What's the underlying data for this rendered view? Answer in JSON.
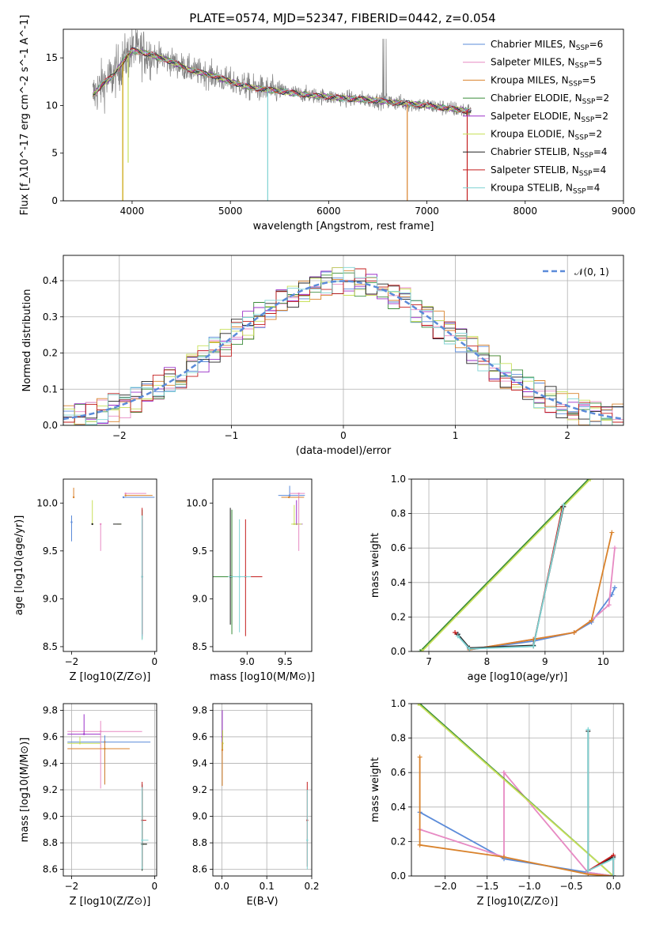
{
  "figure": {
    "title": "PLATE=0574, MJD=52347, FIBERID=0442, z=0.054"
  },
  "colors": {
    "Chabrier MILES": "#5b8bd9",
    "Salpeter MILES": "#e78ac3",
    "Kroupa MILES": "#d9822b",
    "Chabrier ELODIE": "#3a8c3a",
    "Salpeter ELODIE": "#9b30c8",
    "Kroupa ELODIE": "#c8e05a",
    "Chabrier STELIB": "#222222",
    "Salpeter STELIB": "#c41e1e",
    "Kroupa STELIB": "#7fd3d3",
    "data": "#808080",
    "normal": "#5b8bd9"
  },
  "chart_data": [
    {
      "id": "spectrum",
      "type": "line",
      "title": "PLATE=0574, MJD=52347, FIBERID=0442, z=0.054",
      "xlabel": "wavelength [Angstrom, rest frame]",
      "ylabel": "Flux [f_λ10^-17 erg cm^-2 s^-1 A^-1]",
      "xlim": [
        3300,
        9000
      ],
      "ylim": [
        0,
        18
      ],
      "xticks": [
        "4000",
        "5000",
        "6000",
        "7000",
        "8000",
        "9000"
      ],
      "yticks": [
        "0",
        "5",
        "10",
        "15"
      ],
      "grid": false,
      "legend_position": "top-right",
      "series": [
        {
          "name": "Chabrier MILES, N_SSP=6"
        },
        {
          "name": "Salpeter MILES, N_SSP=5"
        },
        {
          "name": "Kroupa MILES, N_SSP=5"
        },
        {
          "name": "Chabrier ELODIE, N_SSP=2"
        },
        {
          "name": "Salpeter ELODIE, N_SSP=2"
        },
        {
          "name": "Kroupa ELODIE, N_SSP=2"
        },
        {
          "name": "Chabrier STELIB, N_SSP=4"
        },
        {
          "name": "Salpeter STELIB, N_SSP=4"
        },
        {
          "name": "Kroupa STELIB, N_SSP=4"
        }
      ],
      "continuum": {
        "x": [
          3600,
          3700,
          3800,
          3900,
          4000,
          4100,
          4200,
          4400,
          4600,
          4800,
          5000,
          5200,
          5500,
          5800,
          6100,
          6400,
          6700,
          7000,
          7300,
          7450
        ],
        "y": [
          11.0,
          12.3,
          13.0,
          14.5,
          15.8,
          15.6,
          15.3,
          14.6,
          13.7,
          13.2,
          12.5,
          11.9,
          11.5,
          11.1,
          10.8,
          10.6,
          10.3,
          10.0,
          9.6,
          9.4
        ]
      }
    },
    {
      "id": "residuals",
      "type": "line",
      "xlabel": "(data-model)/error",
      "ylabel": "Normed distribution",
      "xlim": [
        -2.5,
        2.5
      ],
      "ylim": [
        0,
        0.47
      ],
      "xticks": [
        "−2",
        "−1",
        "0",
        "1",
        "2"
      ],
      "yticks": [
        "0.0",
        "0.1",
        "0.2",
        "0.3",
        "0.4"
      ],
      "grid": true,
      "legend_position": "top-right",
      "legend": "𝒩(0, 1)",
      "normal": {
        "mu": 0,
        "sigma": 1
      }
    },
    {
      "id": "age_vs_Z",
      "type": "scatter",
      "xlabel": "Z [log10(Z/Z⊙)]",
      "ylabel": "age [log10(age/yr)]",
      "xlim": [
        -2.2,
        0.05
      ],
      "ylim": [
        8.45,
        10.25
      ],
      "xticks": [
        "−2",
        "0"
      ],
      "yticks": [
        "8.5",
        "9.0",
        "9.5",
        "10.0"
      ],
      "points": [
        {
          "s": "Chabrier MILES",
          "x": -0.75,
          "y": 10.06,
          "xe": [
            -0.75,
            0.0
          ],
          "ye": [
            0,
            0
          ]
        },
        {
          "s": "Chabrier MILES",
          "x": -2.0,
          "y": 9.8,
          "xe": [
            0,
            0
          ],
          "ye": [
            0.2,
            0.07
          ]
        },
        {
          "s": "Salpeter MILES",
          "x": -0.7,
          "y": 10.1,
          "xe": [
            -0.5,
            0.0
          ],
          "ye": [
            0,
            0
          ]
        },
        {
          "s": "Salpeter MILES",
          "x": -1.3,
          "y": 9.78,
          "xe": [
            0,
            0
          ],
          "ye": [
            0.28,
            0.0
          ]
        },
        {
          "s": "Kroupa MILES",
          "x": -0.7,
          "y": 10.08,
          "xe": [
            -0.65,
            0.0
          ],
          "ye": [
            0,
            0
          ]
        },
        {
          "s": "Kroupa MILES",
          "x": -1.95,
          "y": 10.06,
          "xe": [
            0,
            0
          ],
          "ye": [
            0,
            0.1
          ]
        },
        {
          "s": "Chabrier ELODIE",
          "x": -0.3,
          "y": 9.23,
          "xe": [
            0,
            0
          ],
          "ye": [
            0.65,
            0.7
          ]
        },
        {
          "s": "Salpeter ELODIE",
          "x": -0.3,
          "y": 9.23,
          "xe": [
            0,
            0
          ],
          "ye": [
            0.62,
            0.6
          ]
        },
        {
          "s": "Kroupa ELODIE",
          "x": -1.5,
          "y": 9.78,
          "xe": [
            -0.7,
            0.6
          ],
          "ye": [
            0,
            0.25
          ]
        },
        {
          "s": "Chabrier STELIB",
          "x": -1.5,
          "y": 9.78,
          "xe": [
            -0.7,
            0.5
          ],
          "ye": [
            0,
            0
          ]
        },
        {
          "s": "Salpeter STELIB",
          "x": -0.3,
          "y": 9.23,
          "xe": [
            0,
            0
          ],
          "ye": [
            0.6,
            0.72
          ]
        },
        {
          "s": "Kroupa STELIB",
          "x": -0.3,
          "y": 9.23,
          "xe": [
            0,
            0
          ],
          "ye": [
            0.66,
            0.64
          ]
        }
      ]
    },
    {
      "id": "age_vs_mass",
      "type": "scatter",
      "xlabel": "mass [log10(M/M⊙)]",
      "ylabel": "",
      "xlim": [
        8.55,
        9.85
      ],
      "ylim": [
        8.45,
        10.25
      ],
      "xticks": [
        "9.0",
        "9.5"
      ],
      "yticks": [
        "8.5",
        "9.0",
        "9.5",
        "10.0"
      ],
      "points": [
        {
          "s": "Chabrier MILES",
          "x": 9.56,
          "y": 10.08,
          "xe": [
            0.15,
            0.2
          ],
          "ye": [
            0.02,
            0.1
          ]
        },
        {
          "s": "Salpeter MILES",
          "x": 9.68,
          "y": 10.1,
          "xe": [
            0.12,
            0.08
          ],
          "ye": [
            0.6,
            0
          ]
        },
        {
          "s": "Kroupa MILES",
          "x": 9.55,
          "y": 10.06,
          "xe": [
            0.1,
            0.2
          ],
          "ye": [
            0,
            0
          ]
        },
        {
          "s": "Chabrier ELODIE",
          "x": 8.8,
          "y": 9.23,
          "xe": [
            0.25,
            0.15
          ],
          "ye": [
            0.6,
            0.7
          ]
        },
        {
          "s": "Salpeter ELODIE",
          "x": 9.65,
          "y": 9.78,
          "xe": [
            0.05,
            0.08
          ],
          "ye": [
            0,
            0.25
          ]
        },
        {
          "s": "Kroupa ELODIE",
          "x": 9.62,
          "y": 9.78,
          "xe": [
            0.04,
            0.1
          ],
          "ye": [
            0,
            0.2
          ]
        },
        {
          "s": "Chabrier STELIB",
          "x": 8.78,
          "y": 9.23,
          "xe": [
            0,
            0
          ],
          "ye": [
            0.5,
            0.72
          ]
        },
        {
          "s": "Salpeter STELIB",
          "x": 8.98,
          "y": 9.23,
          "xe": [
            0,
            0.22
          ],
          "ye": [
            0.62,
            0.6
          ]
        },
        {
          "s": "Kroupa STELIB",
          "x": 8.9,
          "y": 9.23,
          "xe": [
            0.15,
            0.15
          ],
          "ye": [
            0.58,
            0.6
          ]
        }
      ]
    },
    {
      "id": "weight_vs_age",
      "type": "line",
      "xlabel": "age [log10(age/yr)]",
      "ylabel": "mass weight",
      "xlim": [
        6.7,
        10.35
      ],
      "ylim": [
        0,
        1.0
      ],
      "xticks": [
        "7",
        "8",
        "9",
        "10"
      ],
      "yticks": [
        "0.0",
        "0.2",
        "0.4",
        "0.6",
        "0.8",
        "1.0"
      ],
      "grid": true,
      "series": [
        {
          "s": "Chabrier MILES",
          "x": [
            7.5,
            7.7,
            8.8,
            9.5,
            9.8,
            10.15,
            10.2
          ],
          "y": [
            0.1,
            0.01,
            0.06,
            0.11,
            0.17,
            0.33,
            0.37
          ]
        },
        {
          "s": "Salpeter MILES",
          "x": [
            7.7,
            8.8,
            9.5,
            9.8,
            10.1,
            10.2
          ],
          "y": [
            0.01,
            0.07,
            0.11,
            0.18,
            0.27,
            0.6
          ]
        },
        {
          "s": "Kroupa MILES",
          "x": [
            7.7,
            8.8,
            9.5,
            9.8,
            10.15
          ],
          "y": [
            0.01,
            0.07,
            0.11,
            0.18,
            0.69
          ]
        },
        {
          "s": "Chabrier ELODIE",
          "x": [
            6.85,
            9.75
          ],
          "y": [
            0.0,
            1.0
          ]
        },
        {
          "s": "Kroupa ELODIE",
          "x": [
            6.88,
            9.78
          ],
          "y": [
            0.0,
            1.0
          ]
        },
        {
          "s": "Salpeter STELIB",
          "x": [
            7.45,
            7.7,
            8.8,
            9.3
          ],
          "y": [
            0.11,
            0.02,
            0.03,
            0.84
          ]
        },
        {
          "s": "Chabrier STELIB",
          "x": [
            7.5,
            7.7,
            8.8,
            9.32
          ],
          "y": [
            0.1,
            0.02,
            0.035,
            0.84
          ]
        },
        {
          "s": "Kroupa STELIB",
          "x": [
            7.5,
            7.7,
            8.8,
            9.32
          ],
          "y": [
            0.09,
            0.015,
            0.03,
            0.85
          ]
        }
      ]
    },
    {
      "id": "mass_vs_Z",
      "type": "scatter",
      "xlabel": "Z [log10(Z/Z⊙)]",
      "ylabel": "mass [log10(M/M⊙)]",
      "xlim": [
        -2.2,
        0.05
      ],
      "ylim": [
        8.55,
        9.85
      ],
      "xticks": [
        "−2",
        "0"
      ],
      "yticks": [
        "8.6",
        "8.8",
        "9.0",
        "9.2",
        "9.4",
        "9.6",
        "9.8"
      ],
      "grid": true,
      "points": [
        {
          "s": "Chabrier MILES",
          "x": -1.2,
          "y": 9.56,
          "xe": [
            0.9,
            1.1
          ],
          "ye": [
            0.32,
            0.05
          ]
        },
        {
          "s": "Salpeter MILES",
          "x": -1.3,
          "y": 9.64,
          "xe": [
            0.8,
            1.0
          ],
          "ye": [
            0.43,
            0.08
          ]
        },
        {
          "s": "Kroupa MILES",
          "x": -1.2,
          "y": 9.51,
          "xe": [
            0.9,
            0.6
          ],
          "ye": [
            0.27,
            0.06
          ]
        },
        {
          "s": "Chabrier ELODIE",
          "x": -0.3,
          "y": 8.79,
          "xe": [
            0,
            0.1
          ],
          "ye": [
            0.2,
            0.4
          ]
        },
        {
          "s": "Salpeter ELODIE",
          "x": -1.7,
          "y": 9.62,
          "xe": [
            0.4,
            0.4
          ],
          "ye": [
            0,
            0.15
          ]
        },
        {
          "s": "Kroupa ELODIE",
          "x": -1.8,
          "y": 9.55,
          "xe": [
            0.3,
            0.5
          ],
          "ye": [
            0,
            0.05
          ]
        },
        {
          "s": "Chabrier STELIB",
          "x": -0.3,
          "y": 8.79,
          "xe": [
            0,
            0.12
          ],
          "ye": [
            0.2,
            0.45
          ]
        },
        {
          "s": "Salpeter STELIB",
          "x": -0.3,
          "y": 8.97,
          "xe": [
            0,
            0.1
          ],
          "ye": [
            0.35,
            0.29
          ]
        },
        {
          "s": "Kroupa STELIB",
          "x": -0.3,
          "y": 8.82,
          "xe": [
            0,
            0.15
          ],
          "ye": [
            0.22,
            0.4
          ]
        }
      ]
    },
    {
      "id": "mass_vs_ebv",
      "type": "scatter",
      "xlabel": "E(B-V)",
      "ylabel": "",
      "xlim": [
        -0.02,
        0.2
      ],
      "ylim": [
        8.55,
        9.85
      ],
      "xticks": [
        "0.0",
        "0.1",
        "0.2"
      ],
      "yticks": [
        "8.6",
        "8.8",
        "9.0",
        "9.2",
        "9.4",
        "9.6",
        "9.8"
      ],
      "grid": true,
      "points": [
        {
          "s": "Salpeter ELODIE",
          "x": 0.001,
          "y": 9.6,
          "xe": [
            0,
            0
          ],
          "ye": [
            0.05,
            0.2
          ]
        },
        {
          "s": "Kroupa ELODIE",
          "x": 0.002,
          "y": 9.55,
          "xe": [
            0,
            0
          ],
          "ye": [
            0.05,
            0.1
          ]
        },
        {
          "s": "Kroupa MILES",
          "x": 0.001,
          "y": 9.5,
          "xe": [
            0,
            0
          ],
          "ye": [
            0.27,
            0.06
          ]
        },
        {
          "s": "Salpeter STELIB",
          "x": 0.19,
          "y": 8.97,
          "xe": [
            0,
            0
          ],
          "ye": [
            0.35,
            0.29
          ]
        },
        {
          "s": "Kroupa STELIB",
          "x": 0.19,
          "y": 8.82,
          "xe": [
            0,
            0
          ],
          "ye": [
            0.22,
            0.38
          ]
        }
      ]
    },
    {
      "id": "weight_vs_Z",
      "type": "line",
      "xlabel": "Z [log10(Z/Z⊙)]",
      "ylabel": "mass weight",
      "xlim": [
        -2.4,
        0.12
      ],
      "ylim": [
        0,
        1.0
      ],
      "xticks": [
        "−2.0",
        "−1.5",
        "−1.0",
        "−0.5",
        "0.0"
      ],
      "yticks": [
        "0.0",
        "0.2",
        "0.4",
        "0.6",
        "0.8",
        "1.0"
      ],
      "grid": true,
      "series": [
        {
          "s": "Chabrier MILES",
          "x": [
            -2.3,
            -1.3,
            -0.3,
            0.0
          ],
          "y": [
            0.37,
            0.1,
            0.02,
            0.0
          ]
        },
        {
          "s": "Salpeter MILES",
          "x": [
            -2.3,
            -1.3,
            -1.3,
            -0.3,
            0.0
          ],
          "y": [
            0.27,
            0.11,
            0.6,
            0.02,
            0.0
          ]
        },
        {
          "s": "Kroupa MILES",
          "x": [
            -2.3,
            -2.3,
            -1.3,
            -0.3,
            0.0
          ],
          "y": [
            0.69,
            0.18,
            0.11,
            0.01,
            0.0
          ]
        },
        {
          "s": "Chabrier ELODIE",
          "x": [
            -2.3,
            0.0
          ],
          "y": [
            1.0,
            0.0
          ]
        },
        {
          "s": "Kroupa ELODIE",
          "x": [
            -2.32,
            0.0
          ],
          "y": [
            1.0,
            0.0
          ]
        },
        {
          "s": "Chabrier STELIB",
          "x": [
            -0.3,
            -0.3,
            0.0,
            0.0
          ],
          "y": [
            0.84,
            0.03,
            0.11,
            0.0
          ]
        },
        {
          "s": "Salpeter STELIB",
          "x": [
            -0.3,
            0.0,
            0.0
          ],
          "y": [
            0.03,
            0.12,
            0.0
          ]
        },
        {
          "s": "Kroupa STELIB",
          "x": [
            -0.3,
            -0.3,
            0.0,
            0.0
          ],
          "y": [
            0.85,
            0.03,
            0.1,
            0.0
          ]
        }
      ]
    }
  ]
}
